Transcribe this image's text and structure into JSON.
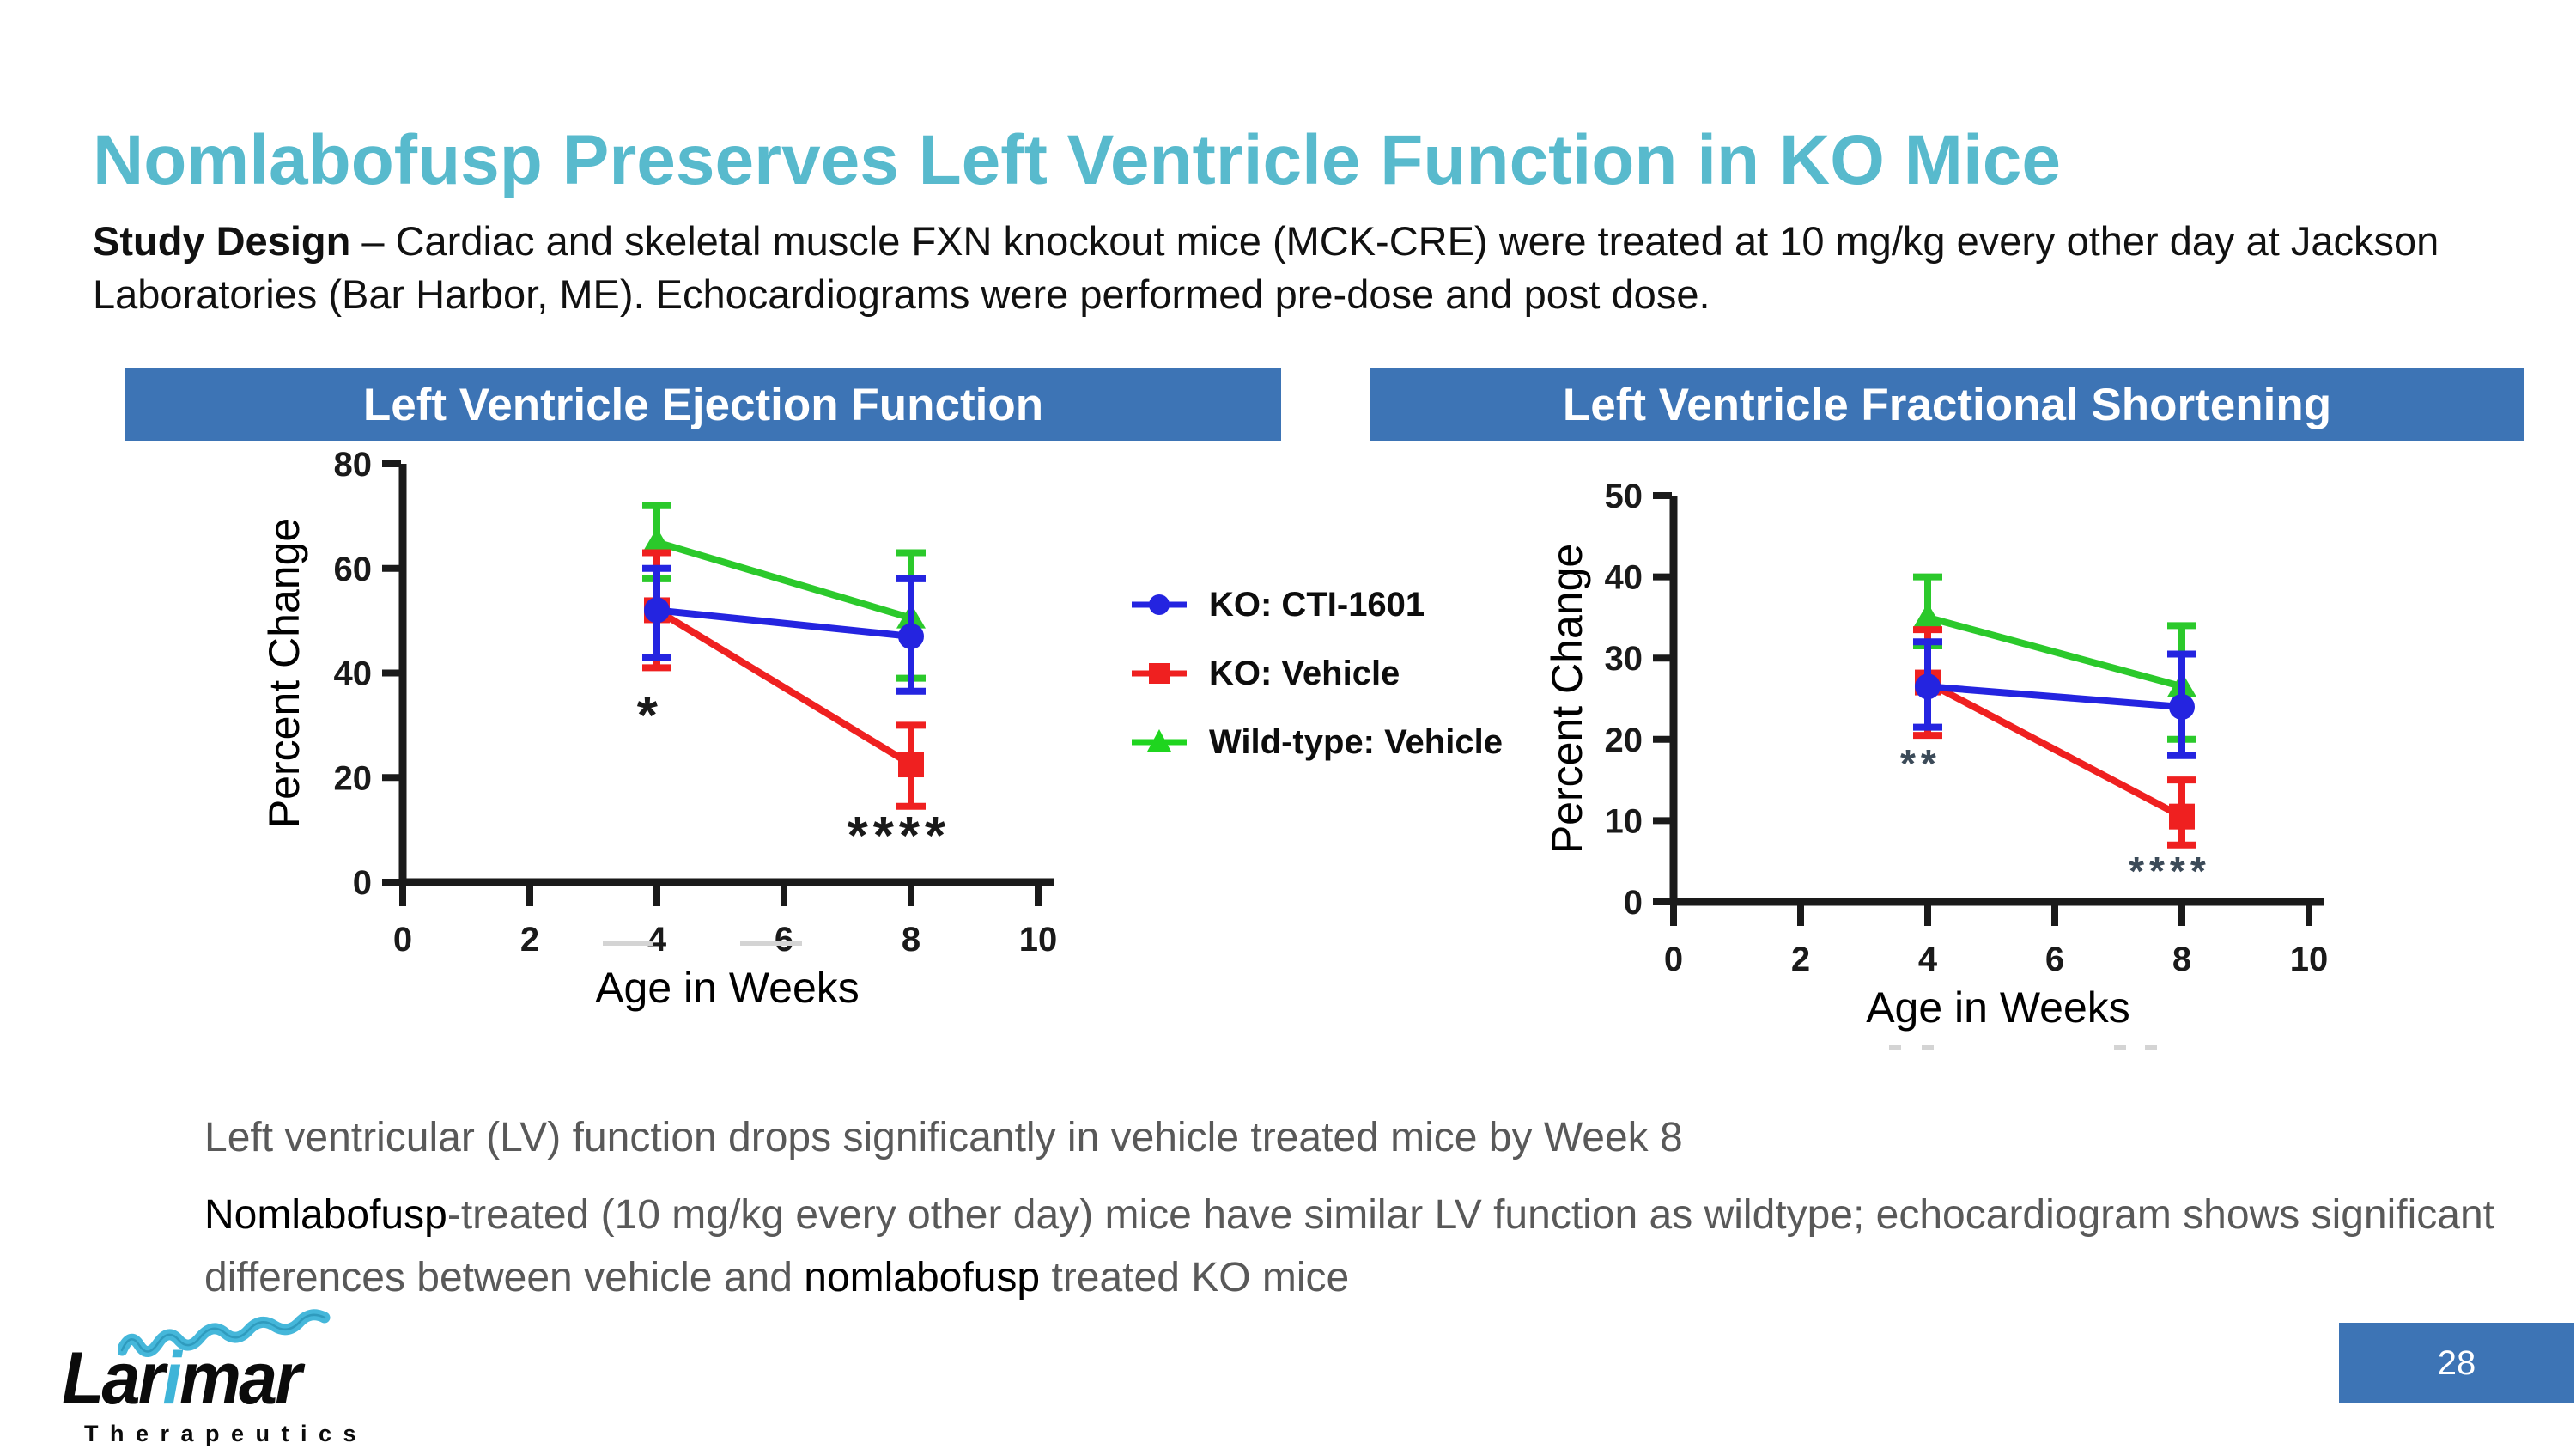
{
  "slide": {
    "title": "Nomlabofusp Preserves Left Ventricle Function in KO Mice",
    "study_design_label": "Study Design",
    "study_design_text": "– Cardiac and skeletal muscle FXN knockout mice (MCK-CRE) were treated at 10 mg/kg every other day at Jackson Laboratories (Bar Harbor, ME). Echocardiograms were performed pre-dose and post dose.",
    "page_number": "28",
    "colors": {
      "title_teal": "#58BACD",
      "header_blue": "#3D74B5",
      "body_gray": "#595959",
      "series_blue": "#2424E0",
      "series_red": "#EF2020",
      "series_green": "#2BC92B"
    }
  },
  "panels": [
    {
      "header": "Left Ventricle Ejection Function"
    },
    {
      "header": "Left Ventricle Fractional Shortening"
    }
  ],
  "legend": {
    "items": [
      {
        "label": "KO: CTI-1601",
        "color": "#2424E0",
        "marker": "circle"
      },
      {
        "label": "KO: Vehicle",
        "color": "#EF2020",
        "marker": "square"
      },
      {
        "label": "Wild-type: Vehicle",
        "color": "#1FD51F",
        "marker": "triangle"
      }
    ]
  },
  "bullets": [
    {
      "segments": [
        {
          "text": "Left ventricular (LV) function drops significantly in vehicle treated mice by Week 8",
          "emphasis": false
        }
      ]
    },
    {
      "segments": [
        {
          "text": "Nomlabofusp",
          "emphasis": true
        },
        {
          "text": "-treated (10 mg/kg every other day) mice have similar LV function as wildtype; echocardiogram shows significant differences between vehicle and ",
          "emphasis": false
        },
        {
          "text": "nomlabofusp",
          "emphasis": true
        },
        {
          "text": " treated KO mice",
          "emphasis": false
        }
      ]
    }
  ],
  "logo": {
    "name_pre": "Lar",
    "name_i": "i",
    "name_post": "mar",
    "subtext": "Therapeutics"
  },
  "chart_data": [
    {
      "type": "line",
      "title": "Left Ventricle Ejection Function",
      "xlabel": "Age in Weeks",
      "ylabel": "Percent Change",
      "xlim": [
        0,
        10
      ],
      "ylim": [
        0,
        80
      ],
      "xticks": [
        0,
        2,
        4,
        6,
        8,
        10
      ],
      "yticks": [
        0,
        20,
        40,
        60,
        80
      ],
      "grid": false,
      "x": [
        4,
        8
      ],
      "series": [
        {
          "name": "KO: CTI-1601",
          "color": "#2424E0",
          "marker": "circle",
          "values": [
            52,
            47
          ],
          "err_low": [
            43,
            36.5
          ],
          "err_high": [
            60,
            58
          ]
        },
        {
          "name": "KO: Vehicle",
          "color": "#EF2020",
          "marker": "square",
          "values": [
            52,
            22.5
          ],
          "err_low": [
            41,
            14.5
          ],
          "err_high": [
            63,
            30
          ]
        },
        {
          "name": "Wild-type: Vehicle",
          "color": "#2BC92B",
          "marker": "triangle",
          "values": [
            65,
            50.5
          ],
          "err_low": [
            58,
            39
          ],
          "err_high": [
            72,
            63
          ]
        }
      ],
      "annotations": [
        {
          "x": 3.89,
          "y": 33,
          "text": "*",
          "size": 62,
          "color": "#1a1a1a"
        },
        {
          "x": 7.81,
          "y": 10,
          "text": "****",
          "size": 62,
          "color": "#1a1a1a"
        }
      ]
    },
    {
      "type": "line",
      "title": "Left Ventricle Fractional Shortening",
      "xlabel": "Age in Weeks",
      "ylabel": "Percent Change",
      "xlim": [
        0,
        10
      ],
      "ylim": [
        0,
        50
      ],
      "xticks": [
        0,
        2,
        4,
        6,
        8,
        10
      ],
      "yticks": [
        0,
        10,
        20,
        30,
        40,
        50
      ],
      "grid": false,
      "x": [
        4,
        8
      ],
      "series": [
        {
          "name": "KO: CTI-1601",
          "color": "#2424E0",
          "marker": "circle",
          "values": [
            26.5,
            24
          ],
          "err_low": [
            21.5,
            18
          ],
          "err_high": [
            32,
            30.5
          ]
        },
        {
          "name": "KO: Vehicle",
          "color": "#EF2020",
          "marker": "square",
          "values": [
            27,
            10.5
          ],
          "err_low": [
            20.5,
            7
          ],
          "err_high": [
            33.5,
            15
          ]
        },
        {
          "name": "Wild-type: Vehicle",
          "color": "#2BC92B",
          "marker": "triangle",
          "values": [
            35,
            26.5
          ],
          "err_low": [
            31.5,
            20
          ],
          "err_high": [
            40,
            34
          ]
        }
      ],
      "annotations": [
        {
          "x": 3.89,
          "y": 17.5,
          "text": "**",
          "size": 46,
          "color": "#3C4B59"
        },
        {
          "x": 7.81,
          "y": 4.3,
          "text": "****",
          "size": 46,
          "color": "#3C4B59"
        }
      ]
    }
  ]
}
